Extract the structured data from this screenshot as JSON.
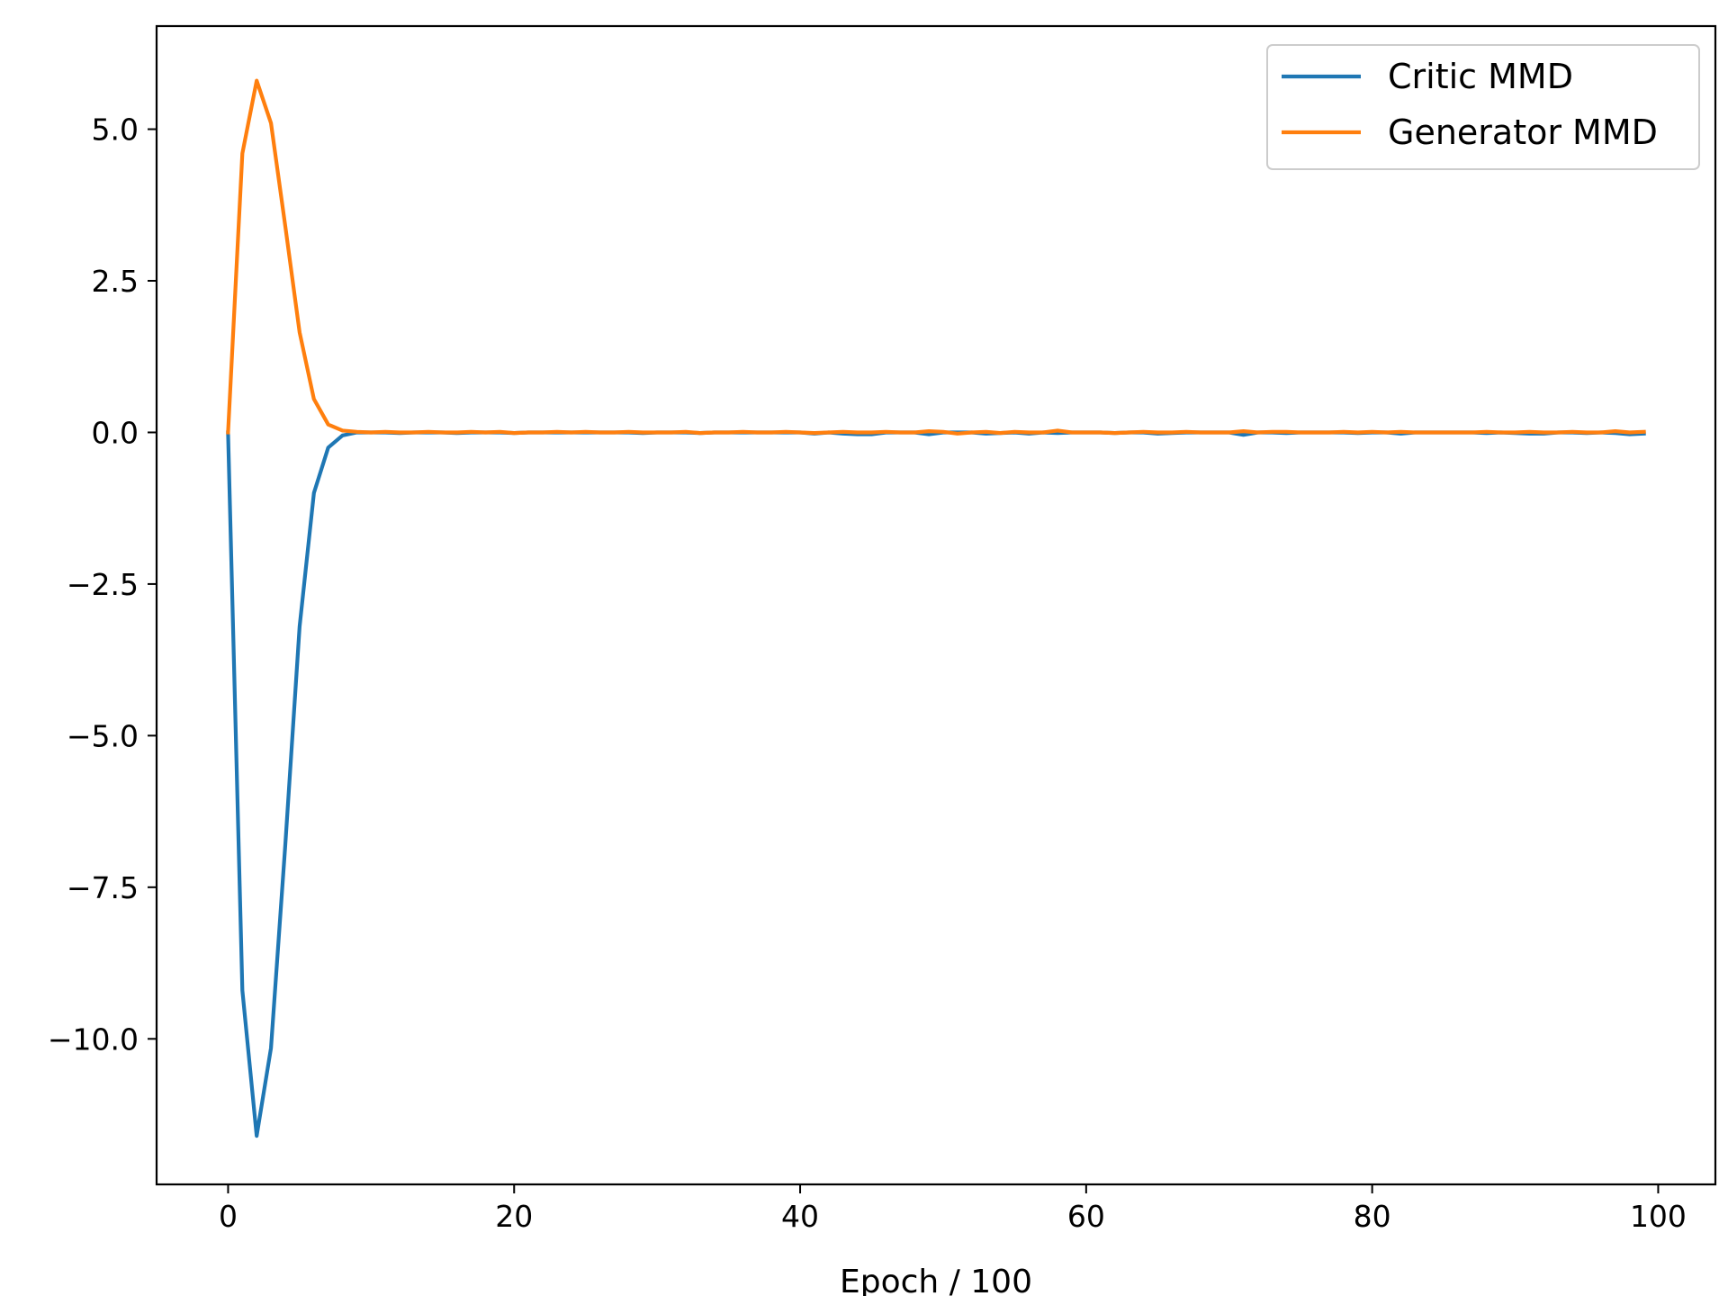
{
  "chart_data": {
    "type": "line",
    "title": "",
    "xlabel": "Epoch / 100",
    "ylabel": "",
    "xlim": [
      -5,
      104
    ],
    "ylim": [
      -12.4,
      6.7
    ],
    "grid": false,
    "legend_position": "top-right",
    "x_ticks": [
      0,
      20,
      40,
      60,
      80,
      100
    ],
    "x_tick_labels": [
      "0",
      "20",
      "40",
      "60",
      "80",
      "100"
    ],
    "y_ticks": [
      5.0,
      2.5,
      0.0,
      -2.5,
      -5.0,
      -7.5,
      -10.0
    ],
    "y_tick_labels": [
      "5.0",
      "2.5",
      "0.0",
      "−2.5",
      "−5.0",
      "−7.5",
      "−10.0"
    ],
    "x": [
      0,
      1,
      2,
      3,
      4,
      5,
      6,
      7,
      8,
      9,
      10,
      11,
      12,
      13,
      14,
      15,
      16,
      17,
      18,
      19,
      20,
      21,
      22,
      23,
      24,
      25,
      26,
      27,
      28,
      29,
      30,
      31,
      32,
      33,
      34,
      35,
      36,
      37,
      38,
      39,
      40,
      41,
      42,
      43,
      44,
      45,
      46,
      47,
      48,
      49,
      50,
      51,
      52,
      53,
      54,
      55,
      56,
      57,
      58,
      59,
      60,
      61,
      62,
      63,
      64,
      65,
      66,
      67,
      68,
      69,
      70,
      71,
      72,
      73,
      74,
      75,
      76,
      77,
      78,
      79,
      80,
      81,
      82,
      83,
      84,
      85,
      86,
      87,
      88,
      89,
      90,
      91,
      92,
      93,
      94,
      95,
      96,
      97,
      98,
      99
    ],
    "series": [
      {
        "name": "Critic MMD",
        "color": "#1f77b4",
        "values": [
          0.0,
          -9.2,
          -11.6,
          -10.15,
          -6.8,
          -3.2,
          -1.0,
          -0.25,
          -0.05,
          0.0,
          0.0,
          0.0,
          -0.01,
          0.0,
          0.0,
          0.0,
          -0.01,
          0.0,
          0.0,
          0.0,
          -0.01,
          0.0,
          0.0,
          0.0,
          0.0,
          0.0,
          0.0,
          0.0,
          0.0,
          -0.01,
          0.0,
          0.0,
          0.0,
          -0.01,
          0.0,
          0.0,
          0.0,
          0.0,
          0.0,
          0.0,
          0.0,
          -0.02,
          0.0,
          -0.02,
          -0.03,
          -0.03,
          0.0,
          0.0,
          0.0,
          -0.03,
          0.0,
          0.0,
          0.0,
          -0.02,
          -0.01,
          0.0,
          -0.02,
          0.0,
          -0.01,
          0.0,
          0.0,
          0.0,
          -0.01,
          0.0,
          0.0,
          -0.02,
          -0.01,
          0.0,
          0.0,
          0.0,
          0.0,
          -0.04,
          0.0,
          0.0,
          -0.01,
          0.0,
          0.0,
          0.0,
          0.0,
          -0.01,
          0.0,
          0.0,
          -0.02,
          0.0,
          0.0,
          0.0,
          0.0,
          0.0,
          -0.01,
          0.0,
          -0.01,
          -0.02,
          -0.02,
          0.0,
          0.0,
          -0.01,
          0.0,
          -0.01,
          -0.03,
          -0.02
        ]
      },
      {
        "name": "Generator MMD",
        "color": "#ff7f0e",
        "values": [
          0.0,
          4.6,
          5.8,
          5.1,
          3.4,
          1.65,
          0.55,
          0.13,
          0.03,
          0.01,
          0.0,
          0.01,
          0.0,
          0.0,
          0.01,
          0.0,
          0.0,
          0.01,
          0.0,
          0.01,
          -0.01,
          0.0,
          0.0,
          0.01,
          0.0,
          0.01,
          0.0,
          0.0,
          0.01,
          0.0,
          0.0,
          0.0,
          0.01,
          -0.01,
          0.0,
          0.0,
          0.01,
          0.0,
          0.0,
          0.01,
          0.0,
          -0.01,
          0.0,
          0.01,
          0.0,
          0.0,
          0.01,
          0.0,
          0.0,
          0.02,
          0.01,
          -0.02,
          0.0,
          0.01,
          -0.01,
          0.01,
          0.0,
          0.0,
          0.03,
          0.0,
          0.0,
          0.0,
          -0.01,
          0.0,
          0.01,
          0.0,
          0.0,
          0.01,
          0.0,
          0.0,
          0.0,
          0.02,
          0.0,
          0.01,
          0.01,
          0.0,
          0.0,
          0.0,
          0.01,
          0.0,
          0.01,
          0.0,
          0.01,
          0.0,
          0.0,
          0.0,
          0.0,
          0.0,
          0.01,
          0.0,
          0.0,
          0.01,
          0.0,
          0.0,
          0.01,
          0.0,
          0.0,
          0.02,
          0.0,
          0.01
        ]
      }
    ]
  }
}
